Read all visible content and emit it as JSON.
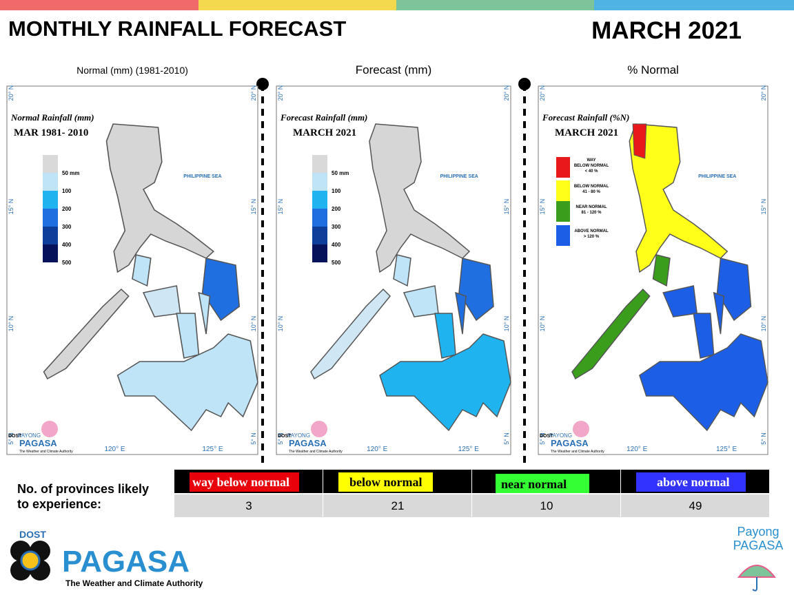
{
  "header": {
    "title": "MONTHLY RAINFALL FORECAST",
    "period": "MARCH 2021"
  },
  "panels": [
    {
      "label": "Normal (mm) (1981-2010)",
      "map_title": "Normal Rainfall (mm)",
      "map_subtitle": "MAR 1981- 2010",
      "legend": [
        {
          "lines": [
            "50 mm"
          ],
          "color": "#d9d9d9"
        },
        {
          "lines": [
            "100"
          ],
          "color": "#bfe3f7"
        },
        {
          "lines": [
            "200"
          ],
          "color": "#1fb4ef"
        },
        {
          "lines": [
            "300"
          ],
          "color": "#1f6fe0"
        },
        {
          "lines": [
            "400"
          ],
          "color": "#0d3f9a"
        },
        {
          "lines": [
            "500"
          ],
          "color": "#06135a"
        }
      ]
    },
    {
      "label": "Forecast (mm)",
      "map_title": "Forecast Rainfall (mm)",
      "map_subtitle": "MARCH 2021",
      "legend": [
        {
          "lines": [
            "50 mm"
          ],
          "color": "#d9d9d9"
        },
        {
          "lines": [
            "100"
          ],
          "color": "#bfe3f7"
        },
        {
          "lines": [
            "200"
          ],
          "color": "#1fb4ef"
        },
        {
          "lines": [
            "300"
          ],
          "color": "#1f6fe0"
        },
        {
          "lines": [
            "400"
          ],
          "color": "#0d3f9a"
        },
        {
          "lines": [
            "500"
          ],
          "color": "#06135a"
        }
      ]
    },
    {
      "label": "% Normal",
      "map_title": "Forecast Rainfall (%N)",
      "map_subtitle": "MARCH 2021",
      "legend": [
        {
          "lines": [
            "WAY",
            "BELOW NORMAL",
            "< 40 %"
          ],
          "color": "#e8191b"
        },
        {
          "lines": [
            "BELOW NORMAL",
            "41 - 80 %"
          ],
          "color": "#ffff1a"
        },
        {
          "lines": [
            "NEAR NORMAL",
            "81 - 120 %"
          ],
          "color": "#3a9e1c"
        },
        {
          "lines": [
            "ABOVE NORMAL",
            "> 120 %"
          ],
          "color": "#1d5ee6"
        }
      ]
    }
  ],
  "map_labels": {
    "sea": "PHILIPPINE SEA",
    "lat": [
      "20° N",
      "15° N",
      "10° N",
      "5° N"
    ],
    "lon": [
      "120° E",
      "125° E"
    ],
    "brand": "PAYONG"
  },
  "table": {
    "row_label": [
      "No. of provinces likely",
      "to experience:"
    ],
    "columns": [
      {
        "name": "way below normal",
        "color": "#e8000b"
      },
      {
        "name": "below normal",
        "color": "#ffff00"
      },
      {
        "name": "near normal",
        "color": "#33ff33"
      },
      {
        "name": "above normal",
        "color": "#3333ff"
      }
    ],
    "counts": [
      3,
      21,
      10,
      49
    ]
  },
  "branding": {
    "dost": "DOST",
    "name": "PAGASA",
    "tagline": "The Weather and Climate Authority",
    "payong": [
      "Payong",
      "PAGASA"
    ]
  }
}
